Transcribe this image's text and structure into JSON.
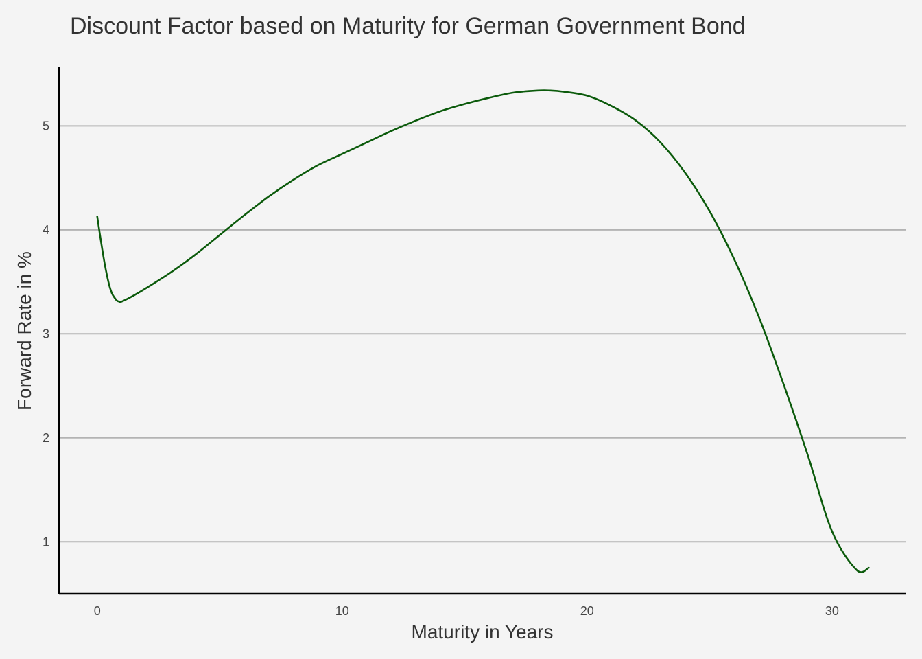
{
  "chart_data": {
    "type": "line",
    "title": "Discount Factor based on Maturity for German Government Bond",
    "xlabel": "Maturity in Years",
    "ylabel": "Forward Rate in %",
    "xlim": [
      -1.56,
      33.0
    ],
    "ylim": [
      0.5,
      5.57
    ],
    "xticks": [
      0,
      10,
      20,
      30
    ],
    "yticks": [
      1,
      2,
      3,
      4,
      5
    ],
    "grid": "horizontal major",
    "colors": {
      "line": "#0b5a0b",
      "background": "#f4f4f4",
      "grid": "#b3b3b3"
    },
    "series": [
      {
        "x": [
          0.0,
          0.1,
          0.2,
          0.3,
          0.4,
          0.5,
          0.6,
          0.7,
          0.8,
          0.9,
          1.0,
          1.5,
          2.0,
          3.0,
          4.0,
          5.0,
          6.0,
          7.0,
          8.0,
          9.0,
          10.0,
          11.0,
          12.0,
          13.0,
          14.0,
          15.0,
          16.0,
          17.0,
          18.0,
          18.5,
          19.0,
          20.0,
          21.0,
          22.0,
          23.0,
          24.0,
          25.0,
          26.0,
          27.0,
          28.0,
          29.0,
          30.0,
          31.0,
          31.5
        ],
        "y": [
          4.13,
          3.97,
          3.82,
          3.68,
          3.56,
          3.46,
          3.39,
          3.35,
          3.32,
          3.31,
          3.31,
          3.37,
          3.44,
          3.59,
          3.76,
          3.95,
          4.14,
          4.32,
          4.48,
          4.62,
          4.73,
          4.84,
          4.95,
          5.05,
          5.14,
          5.21,
          5.27,
          5.32,
          5.34,
          5.34,
          5.33,
          5.29,
          5.19,
          5.05,
          4.84,
          4.55,
          4.18,
          3.72,
          3.17,
          2.53,
          1.84,
          1.1,
          0.73,
          0.75
        ]
      }
    ]
  }
}
